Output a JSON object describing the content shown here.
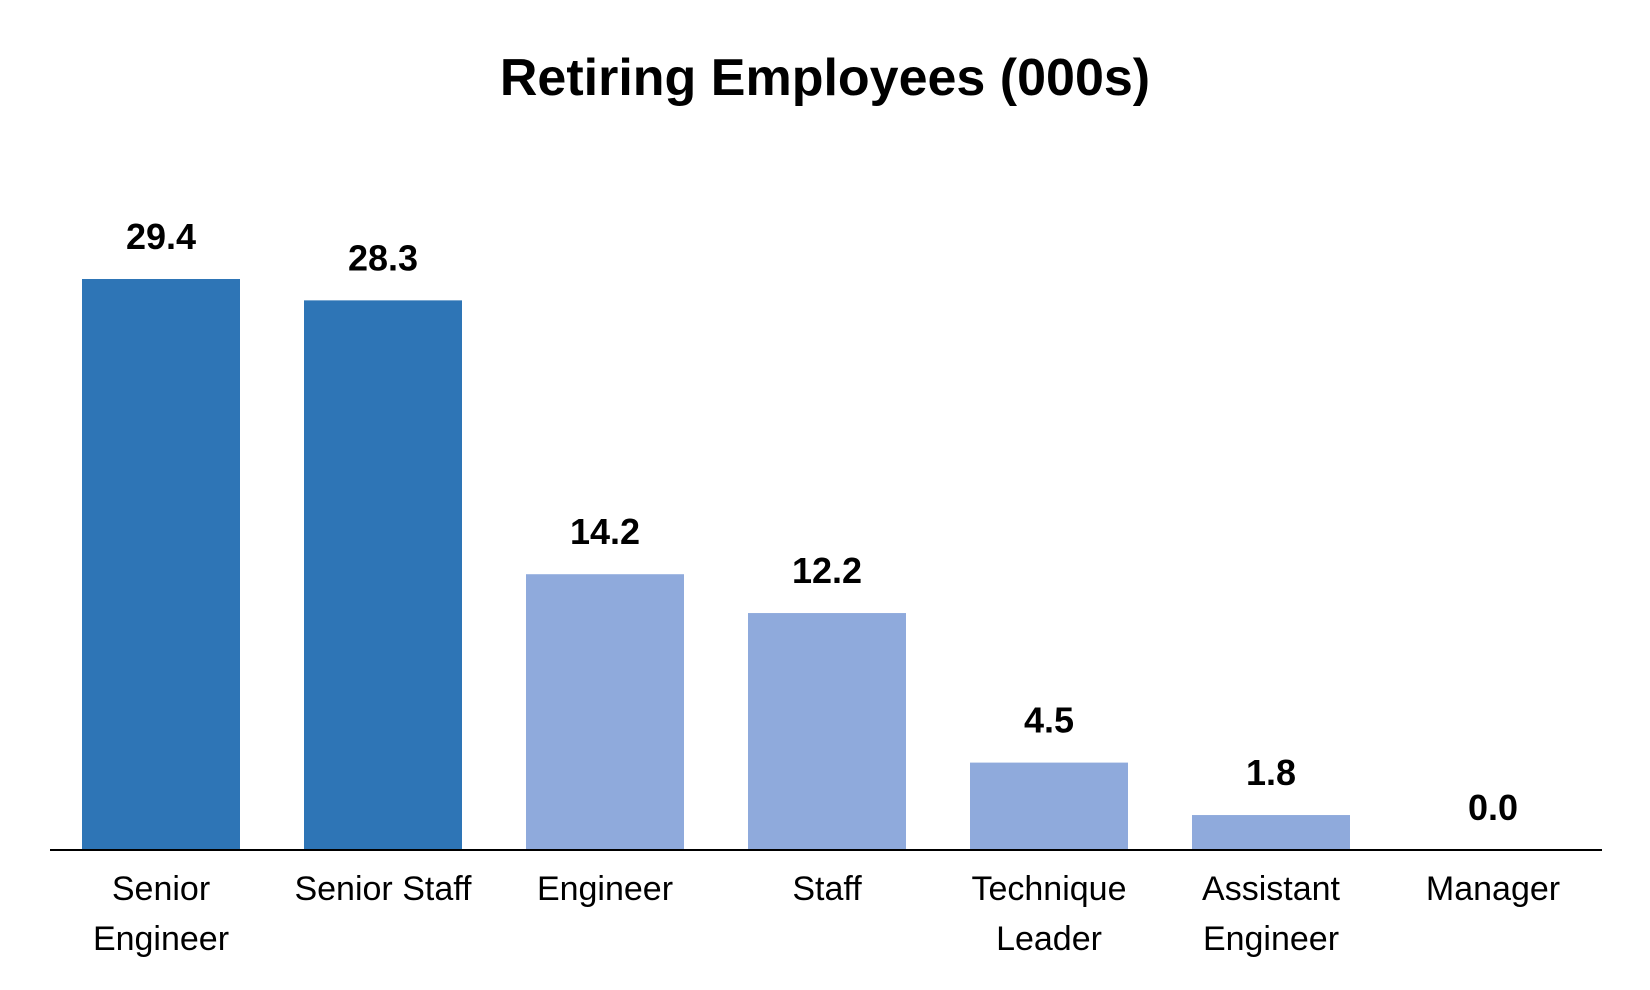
{
  "chart_data": {
    "type": "bar",
    "title": "Retiring Employees (000s)",
    "xlabel": "",
    "ylabel": "",
    "ylim": [
      0,
      29.4
    ],
    "grid": false,
    "legend": "none",
    "categories": [
      [
        "Senior",
        "Engineer"
      ],
      [
        "Senior Staff"
      ],
      [
        "Engineer"
      ],
      [
        "Staff"
      ],
      [
        "Technique",
        "Leader"
      ],
      [
        "Assistant",
        "Engineer"
      ],
      [
        "Manager"
      ]
    ],
    "values": [
      29.4,
      28.3,
      14.2,
      12.2,
      4.5,
      1.8,
      0.0
    ],
    "value_labels": [
      "29.4",
      "28.3",
      "14.2",
      "12.2",
      "4.5",
      "1.8",
      "0.0"
    ],
    "colors": [
      "#2e75b6",
      "#2e75b6",
      "#8faadc",
      "#8faadc",
      "#8faadc",
      "#8faadc",
      "#8faadc"
    ]
  }
}
